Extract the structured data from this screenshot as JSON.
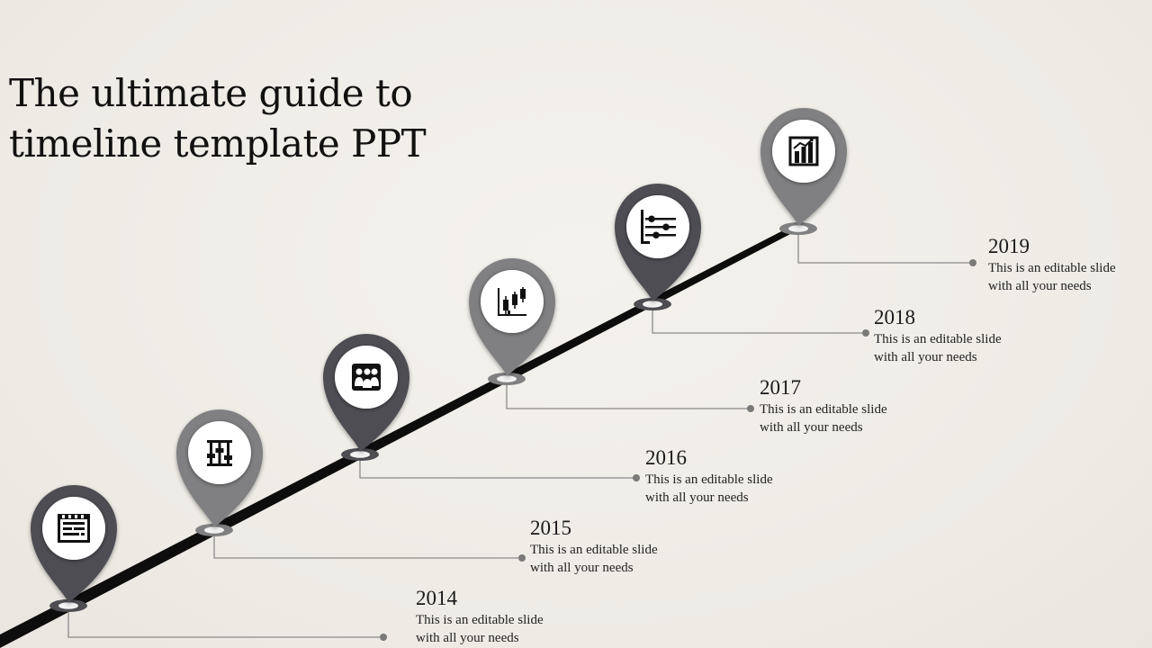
{
  "title": {
    "line1": "The ultimate guide to",
    "line2": "timeline template PPT"
  },
  "milestones": [
    {
      "year": "2014",
      "line1": "This is an editable slide",
      "line2": "with all your needs",
      "icon": "calendar-icon",
      "pin_color": "#4e4d52"
    },
    {
      "year": "2015",
      "line1": "This is an editable slide",
      "line2": "with all your needs",
      "icon": "sliders-icon",
      "pin_color": "#808082"
    },
    {
      "year": "2016",
      "line1": "This is an editable slide",
      "line2": "with all your needs",
      "icon": "team-icon",
      "pin_color": "#4e4d52"
    },
    {
      "year": "2017",
      "line1": "This is an editable slide",
      "line2": "with all your needs",
      "icon": "candlestick-chart-icon",
      "pin_color": "#808082"
    },
    {
      "year": "2018",
      "line1": "This is an editable slide",
      "line2": "with all your needs",
      "icon": "timeline-chart-icon",
      "pin_color": "#4e4d52"
    },
    {
      "year": "2019",
      "line1": "This is an editable slide",
      "line2": "with all your needs",
      "icon": "bar-chart-icon",
      "pin_color": "#808082"
    }
  ],
  "colors": {
    "road": "#0d0d0d",
    "connector": "#8a8a8a",
    "dot": "#7a7a7a"
  }
}
